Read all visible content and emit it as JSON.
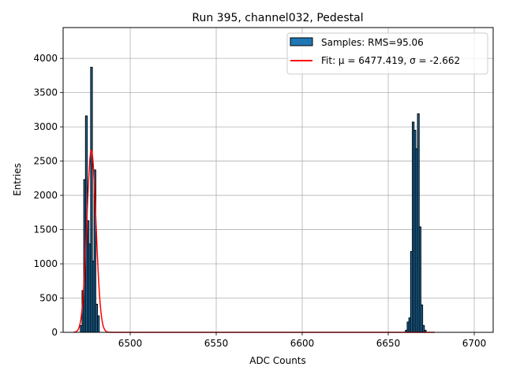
{
  "chart_data": {
    "type": "bar",
    "title": "Run 395, channel032, Pedestal",
    "xlabel": "ADC Counts",
    "ylabel": "Entries",
    "xlim": [
      6461,
      6711
    ],
    "ylim": [
      0,
      4450
    ],
    "xticks": [
      6500,
      6550,
      6600,
      6650,
      6700
    ],
    "yticks": [
      0,
      500,
      1000,
      1500,
      2000,
      2500,
      3000,
      3500,
      4000
    ],
    "grid": true,
    "legend_position": "top-right",
    "bar_color": "#1f77b4",
    "bar_edge_color": "#000000",
    "fit_color": "#ff0000",
    "bin_width": 1,
    "bins": [
      {
        "x": 6471,
        "y": 100
      },
      {
        "x": 6472,
        "y": 610
      },
      {
        "x": 6473,
        "y": 2230
      },
      {
        "x": 6474,
        "y": 3160
      },
      {
        "x": 6475,
        "y": 1630
      },
      {
        "x": 6476,
        "y": 1290
      },
      {
        "x": 6477,
        "y": 3870
      },
      {
        "x": 6478,
        "y": 1040
      },
      {
        "x": 6479,
        "y": 2370
      },
      {
        "x": 6480,
        "y": 410
      },
      {
        "x": 6481,
        "y": 240
      },
      {
        "x": 6660,
        "y": 30
      },
      {
        "x": 6661,
        "y": 150
      },
      {
        "x": 6662,
        "y": 210
      },
      {
        "x": 6663,
        "y": 1180
      },
      {
        "x": 6664,
        "y": 3070
      },
      {
        "x": 6665,
        "y": 2950
      },
      {
        "x": 6666,
        "y": 2680
      },
      {
        "x": 6667,
        "y": 3190
      },
      {
        "x": 6668,
        "y": 1540
      },
      {
        "x": 6669,
        "y": 400
      },
      {
        "x": 6670,
        "y": 100
      },
      {
        "x": 6671,
        "y": 30
      }
    ],
    "fit": {
      "mu": 6477.419,
      "sigma": 2.662,
      "amplitude": 2660,
      "x_range": [
        6467,
        6677
      ]
    },
    "legend": [
      {
        "kind": "patch",
        "label": "Samples: RMS=95.06"
      },
      {
        "kind": "line",
        "label": "Fit: μ = 6477.419, σ = -2.662"
      }
    ]
  }
}
